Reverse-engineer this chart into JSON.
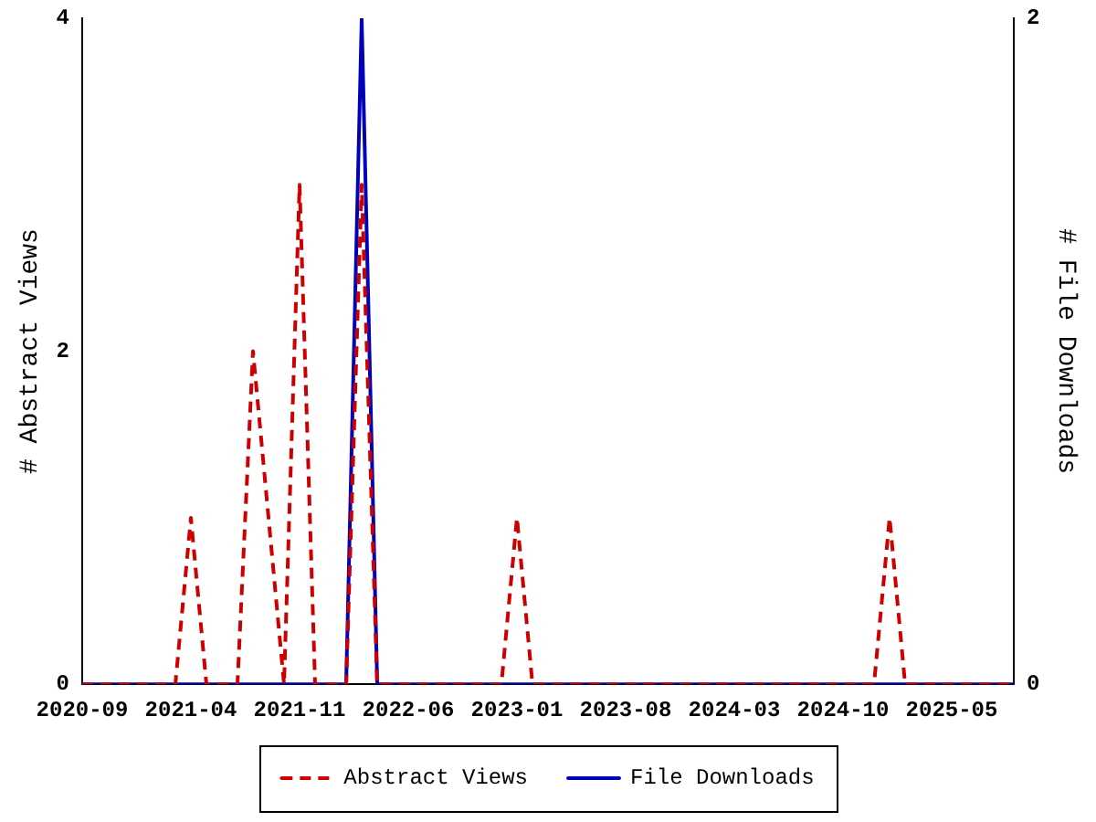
{
  "chart_data": {
    "type": "line",
    "x": [
      "2020-09",
      "2020-10",
      "2020-11",
      "2020-12",
      "2021-01",
      "2021-02",
      "2021-03",
      "2021-04",
      "2021-05",
      "2021-06",
      "2021-07",
      "2021-08",
      "2021-09",
      "2021-10",
      "2021-11",
      "2021-12",
      "2022-01",
      "2022-02",
      "2022-03",
      "2022-04",
      "2022-05",
      "2022-06",
      "2022-07",
      "2022-08",
      "2022-09",
      "2022-10",
      "2022-11",
      "2022-12",
      "2023-01",
      "2023-02",
      "2023-03",
      "2023-04",
      "2023-05",
      "2023-06",
      "2023-07",
      "2023-08",
      "2023-09",
      "2023-10",
      "2023-11",
      "2023-12",
      "2024-01",
      "2024-02",
      "2024-03",
      "2024-04",
      "2024-05",
      "2024-06",
      "2024-07",
      "2024-08",
      "2024-09",
      "2024-10",
      "2024-11",
      "2024-12",
      "2025-01",
      "2025-02",
      "2025-03",
      "2025-04",
      "2025-05",
      "2025-06",
      "2025-07",
      "2025-08",
      "2025-09"
    ],
    "series": [
      {
        "name": "Abstract Views",
        "color": "#cc0000",
        "line_style": "dashed",
        "values": [
          0,
          0,
          0,
          0,
          0,
          0,
          0,
          1,
          0,
          0,
          0,
          2,
          1,
          0,
          3,
          0,
          0,
          0,
          3,
          0,
          0,
          0,
          0,
          0,
          0,
          0,
          0,
          0,
          1,
          0,
          0,
          0,
          0,
          0,
          0,
          0,
          0,
          0,
          0,
          0,
          0,
          0,
          0,
          0,
          0,
          0,
          0,
          0,
          0,
          0,
          0,
          0,
          1,
          0,
          0,
          0,
          0,
          0,
          0,
          0,
          0
        ]
      },
      {
        "name": "File Downloads",
        "color": "#0000bb",
        "line_style": "solid",
        "axis": "y2",
        "values": [
          0,
          0,
          0,
          0,
          0,
          0,
          0,
          0,
          0,
          0,
          0,
          0,
          0,
          0,
          0,
          0,
          0,
          0,
          2,
          0,
          0,
          0,
          0,
          0,
          0,
          0,
          0,
          0,
          0,
          0,
          0,
          0,
          0,
          0,
          0,
          0,
          0,
          0,
          0,
          0,
          0,
          0,
          0,
          0,
          0,
          0,
          0,
          0,
          0,
          0,
          0,
          0,
          0,
          0,
          0,
          0,
          0,
          0,
          0,
          0,
          0
        ]
      }
    ],
    "xlim": [
      "2020-09",
      "2025-09"
    ],
    "xticks": [
      "2020-09",
      "2021-04",
      "2021-11",
      "2022-06",
      "2023-01",
      "2023-08",
      "2024-03",
      "2024-10",
      "2025-05"
    ],
    "ylabel": "# Abstract Views",
    "y2label": "# File Downloads",
    "ylim": [
      0,
      4
    ],
    "yticks": [
      0,
      2,
      4
    ],
    "y2lim": [
      0,
      2
    ],
    "y2ticks": [
      0,
      2
    ],
    "grid": false,
    "legend": "bottom",
    "marker": "none"
  }
}
